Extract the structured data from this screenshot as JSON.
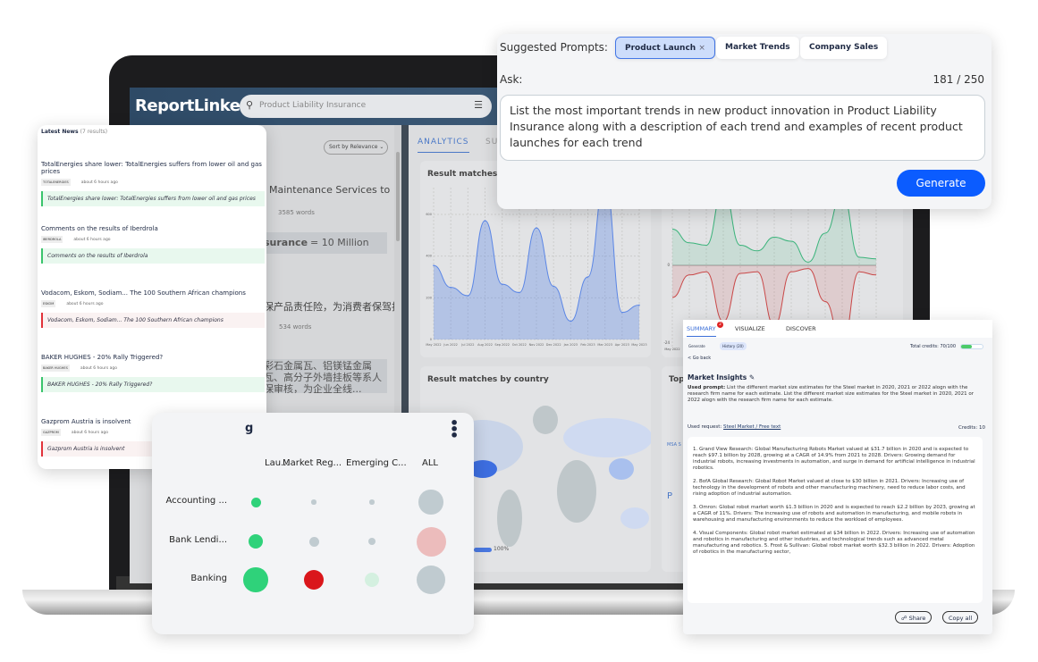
{
  "app": {
    "logo": "ReportLinker",
    "search_value": "Product Liability Insurance",
    "sort": "Sort by Relevance"
  },
  "results": [
    {
      "title": "Maintenance Services to",
      "words": "3585 words",
      "snippet_highlight": "surance",
      "snippet_rest": " = 10 Million"
    },
    {
      "title": "保产品责任险，为消费者保驾护",
      "words": "534 words",
      "snippet": "彩石金属瓦、铝镁锰金属瓦、高分子外墙挂板等系人保审核，为企业全线..."
    }
  ],
  "analytics": {
    "tabs": [
      "ANALYTICS",
      "SU"
    ],
    "time_chart": {
      "title": "Result matches ove",
      "x": [
        "May 2022",
        "Jun 2022",
        "Jul 2022",
        "Aug 2022",
        "Sep 2022",
        "Oct 2022",
        "Nov 2022",
        "Dec 2022",
        "Jan 2023",
        "Feb 2023",
        "Mar 2023",
        "Apr 2023",
        "May 2023"
      ],
      "values": [
        355,
        250,
        210,
        570,
        265,
        225,
        535,
        255,
        88,
        300,
        760,
        130,
        165
      ],
      "yticks": [
        0,
        200,
        400,
        600
      ],
      "color": "#5b86e5"
    },
    "sentiment_chart": {
      "positive": [
        45,
        28,
        25,
        95,
        25,
        18,
        35,
        30,
        4,
        40,
        90,
        10,
        8
      ],
      "negative": [
        -40,
        -12,
        -8,
        -70,
        -10,
        -8,
        -75,
        -8,
        -4,
        -45,
        -100,
        -8,
        -12
      ],
      "ytick_zero": "0",
      "ytick_min": "-24",
      "first_x": "May 2022",
      "pos_color": "#3ab37a",
      "neg_color": "#c94848"
    },
    "country_title": "Result matches by country",
    "legend_max": "100%",
    "top_title": "Top",
    "top_items": [
      "MSA S",
      "P"
    ]
  },
  "news": {
    "title": "Latest News",
    "count": "(7 results)",
    "items": [
      {
        "title": "TotalEnergies share lower: TotalEnergies suffers from lower oil and gas prices",
        "tag": "TOTALENERGIES",
        "time": "about 6 hours ago",
        "quote": "TotalEnergies share lower: TotalEnergies suffers from lower oil and gas prices",
        "sentiment": "positive"
      },
      {
        "title": "Comments on the results of Iberdrola",
        "tag": "IBERDROLA",
        "time": "about 6 hours ago",
        "quote": "Comments on the results of Iberdrola",
        "sentiment": "positive"
      },
      {
        "title": "Vodacom, Eskom, Sodiam... The 100 Southern African champions",
        "tag": "ESKOM",
        "time": "about 6 hours ago",
        "quote": "Vodacom, Eskom, Sodiam... The 100 Southern African champions",
        "sentiment": "negative"
      },
      {
        "title": "BAKER HUGHES - 20% Rally Triggered?",
        "tag": "BAKER HUGHES",
        "time": "about 6 hours ago",
        "quote": "BAKER HUGHES - 20% Rally Triggered?",
        "sentiment": "positive"
      },
      {
        "title": "Gazprom Austria is insolvent",
        "tag": "GAZPROM",
        "time": "about 6 hours ago",
        "quote": "Gazprom Austria is insolvent",
        "sentiment": "negative"
      }
    ]
  },
  "prompt": {
    "label": "Suggested Prompts:",
    "chips": [
      "Product Launch",
      "Market Trends",
      "Company Sales"
    ],
    "ask_label": "Ask:",
    "counter": "181 / 250",
    "text": "List the most important trends in new product innovation in Product Liability Insurance along with a description of each trend and examples of recent product launches for each trend",
    "generate": "Generate"
  },
  "bubble": {
    "title_fragment": "g",
    "columns": [
      "Lau...",
      "Market Reg...",
      "Emerging C...",
      "ALL"
    ],
    "rows": [
      {
        "label": "Accounting ...",
        "cells": [
          {
            "size": 2,
            "color": "#2fd27a"
          },
          {
            "size": 1,
            "color": "#c0cbd0"
          },
          {
            "size": 1,
            "color": "#c0cbd0"
          },
          {
            "size": 5,
            "color": "#c0cbd0"
          }
        ]
      },
      {
        "label": "Bank Lendi...",
        "cells": [
          {
            "size": 3,
            "color": "#2fd27a"
          },
          {
            "size": 2,
            "color": "#c0cbd0"
          },
          {
            "size": 1.5,
            "color": "#c0cbd0"
          },
          {
            "size": 6,
            "color": "#ecbcbc"
          }
        ]
      },
      {
        "label": "Banking",
        "cells": [
          {
            "size": 5,
            "color": "#2fd27a"
          },
          {
            "size": 4,
            "color": "#da161b"
          },
          {
            "size": 3,
            "color": "#d4f0e0"
          },
          {
            "size": 5.8,
            "color": "#c0cbd0"
          }
        ]
      }
    ]
  },
  "summary": {
    "tabs": [
      "SUMMARY",
      "VISUALIZE",
      "DISCOVER"
    ],
    "badge": "2",
    "generate": "Generate",
    "history": "History (20)",
    "credits_total": "Total credits: 70/100",
    "credits_fraction": 0.7,
    "go_back": "< Go back",
    "heading": "Market Insights",
    "used_prompt_label": "Used prompt:",
    "used_prompt": "List the different market size estimates for the Steel market in 2020, 2021 or 2022 alogn with the research firm name for each estimate. List the different market size estimates for the Steel market in 2020, 2021 or 2022 alogn with the research firm name for each estimate.",
    "used_request_label": "Used request:",
    "used_request": "Steel Market / Free text",
    "credits": "Credits: 10",
    "answer": [
      "1. Grand View Research: Global Manufacturing Robots Market valued at $31.7 billion in 2020 and is expected to reach $97.1 billion by 2028, growing at a CAGR of 14.9% from 2021 to 2028. Drivers: Growing demand for industrial robots, increasing investments in automation, and surge in demand for artificial intelligence in industrial robotics.",
      "2. BofA Global Research: Global Robot Market valued at close to $30 billion in 2021. Drivers: Increasing use of technology in the development of robots and other manufacturing machinery, need to reduce labor costs, and rising adoption of industrial automation.",
      "3. Omron: Global robot market worth $1.3 billion in 2020 and is expected to reach $2.2 billion by 2023, growing at a CAGR of 11%. Drivers: The increasing use of robots and automation in manufacturing, and mobile robots in warehousing and manufacturing environments to reduce the workload of employees.",
      "4. Visual Components: Global robot market estimated at $34 billion in 2022. Drivers: Increasing use of automation and robotics in manufacturing and other industries, and technological trends such as advanced metal manufacturing and robotics. 5. Frost & Sullivan: Global robot market worth $32.3 billion in 2022. Drivers: Adoption of robotics in the manufacturing sector,"
    ],
    "share": "Share",
    "copy": "Copy all"
  }
}
